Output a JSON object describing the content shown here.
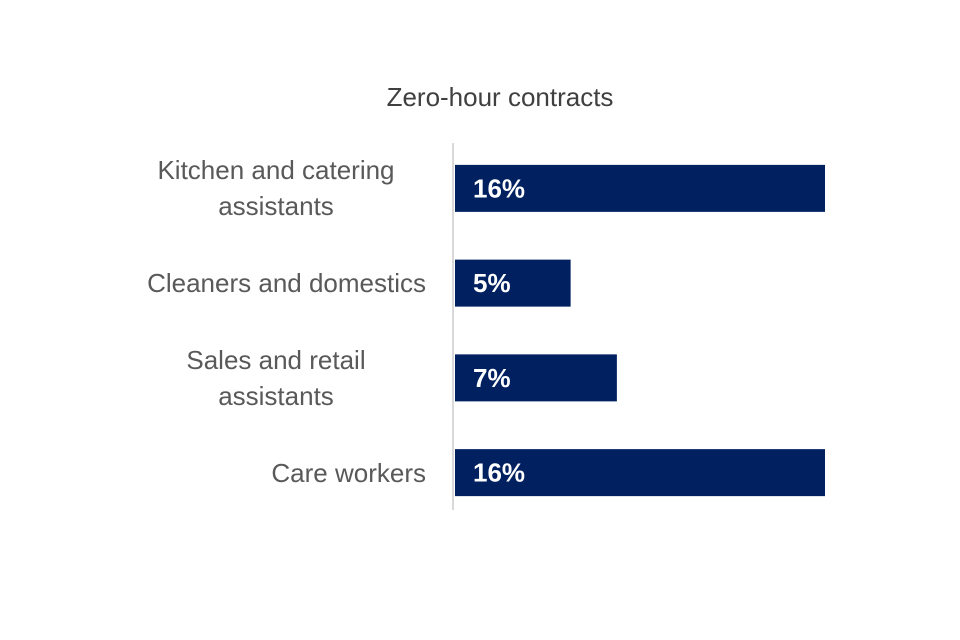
{
  "chart_data": {
    "type": "bar",
    "orientation": "horizontal",
    "title": "Zero-hour contracts",
    "categories": [
      "Kitchen and catering assistants",
      "Cleaners and domestics",
      "Sales and retail assistants",
      "Care workers"
    ],
    "values": [
      16,
      5,
      7,
      16
    ],
    "value_labels": [
      "16%",
      "5%",
      "7%",
      "16%"
    ],
    "color": "#002060"
  }
}
